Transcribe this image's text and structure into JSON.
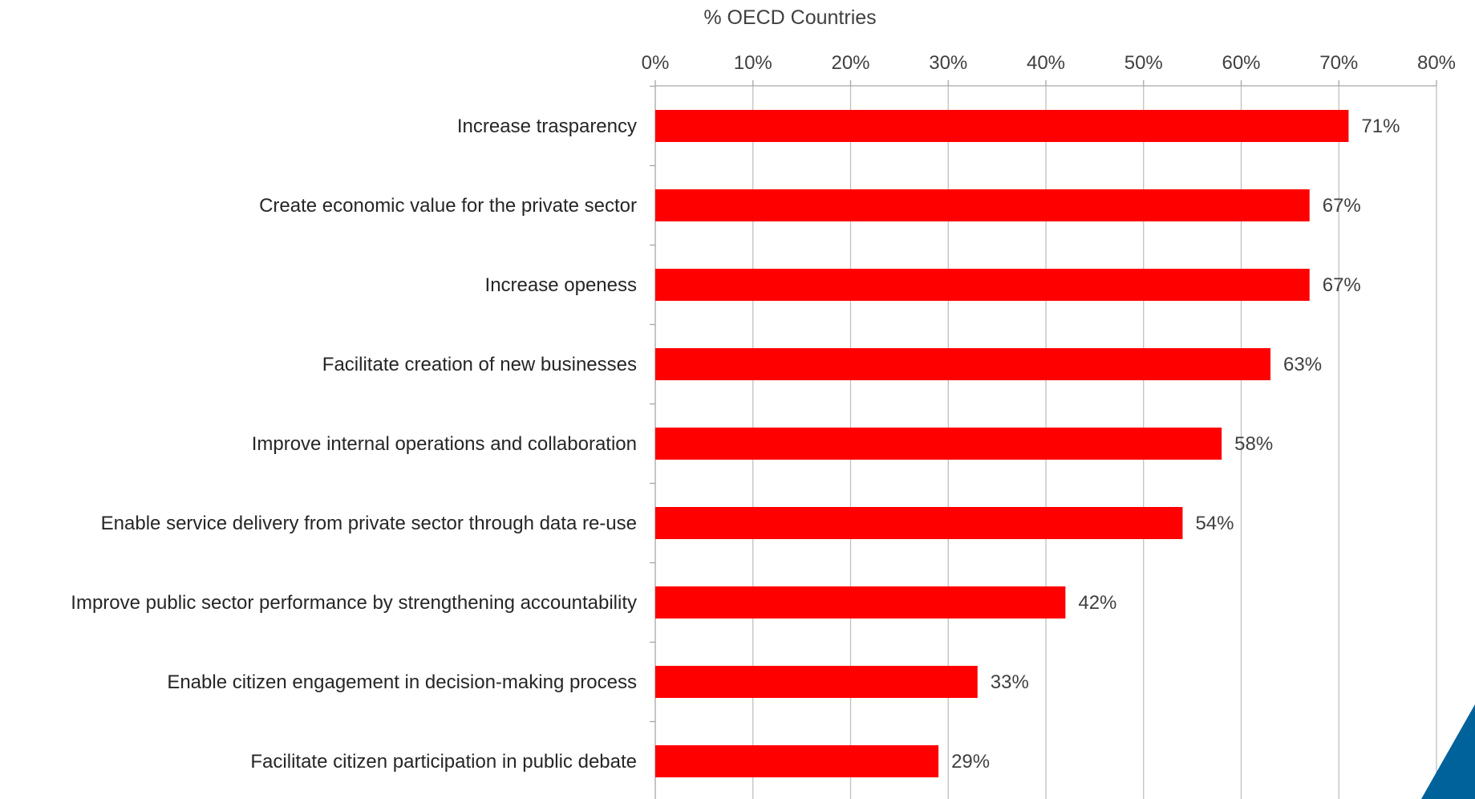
{
  "chart_data": {
    "type": "bar",
    "orientation": "horizontal",
    "xlabel": "% OECD Countries",
    "xlabel_position": "top",
    "ylabel": "",
    "xlim": [
      0,
      80
    ],
    "x_ticks": [
      0,
      10,
      20,
      30,
      40,
      50,
      60,
      70,
      80
    ],
    "x_tick_labels": [
      "0%",
      "10%",
      "20%",
      "30%",
      "40%",
      "50%",
      "60%",
      "70%",
      "80%"
    ],
    "grid": "vertical",
    "categories": [
      "Increase trasparency",
      "Create economic value for the private sector",
      "Increase openess",
      "Facilitate creation of new businesses",
      "Improve internal operations and collaboration",
      "Enable service delivery from private sector through data re-use",
      "Improve public sector performance by strengthening accountability",
      "Enable citizen engagement in decision-making process",
      "Facilitate citizen participation in public debate"
    ],
    "values": [
      71,
      67,
      67,
      63,
      58,
      54,
      42,
      33,
      29
    ],
    "data_labels": [
      "71%",
      "67%",
      "67%",
      "63%",
      "58%",
      "54%",
      "42%",
      "33%",
      "29%"
    ]
  },
  "colors": {
    "bar": "#ff0000",
    "grid": "#bfbfbf",
    "axis": "#a6a6a6",
    "corner_accent": "#00629b"
  },
  "decorations": {
    "corner_shape": "blue-triangle-bottom-right"
  }
}
